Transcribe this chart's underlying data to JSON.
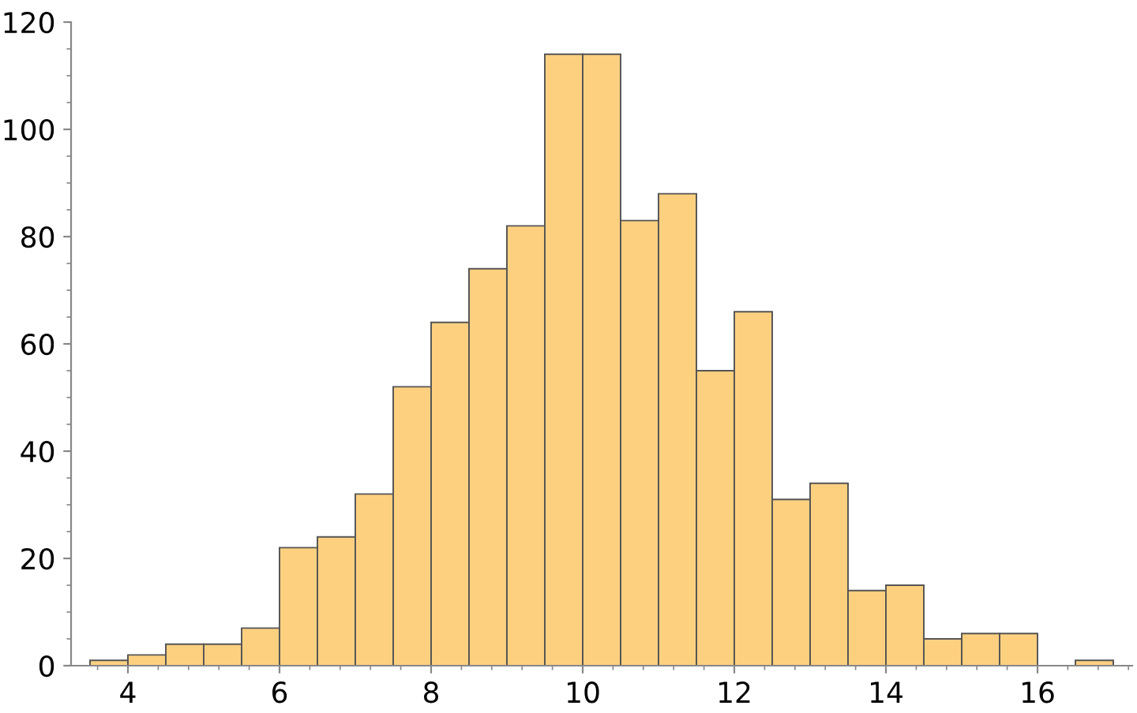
{
  "chart_data": {
    "type": "histogram",
    "bins": [
      3.5,
      4,
      4.5,
      5,
      5.5,
      6,
      6.5,
      7,
      7.5,
      8,
      8.5,
      9,
      9.5,
      10,
      10.5,
      11,
      11.5,
      12,
      12.5,
      13,
      13.5,
      14,
      14.5,
      15,
      15.5,
      16,
      16.5,
      17
    ],
    "values": [
      1,
      2,
      4,
      4,
      7,
      22,
      24,
      32,
      52,
      64,
      74,
      82,
      114,
      114,
      83,
      88,
      55,
      66,
      31,
      34,
      14,
      15,
      5,
      6,
      6,
      0,
      1
    ],
    "color": "#fdd080",
    "xlim": [
      3.25,
      17.25
    ],
    "ylim": [
      0,
      120
    ],
    "xticks": [
      4,
      6,
      8,
      10,
      12,
      14,
      16
    ],
    "yticks": [
      0,
      20,
      40,
      60,
      80,
      100,
      120
    ],
    "grid": false
  }
}
